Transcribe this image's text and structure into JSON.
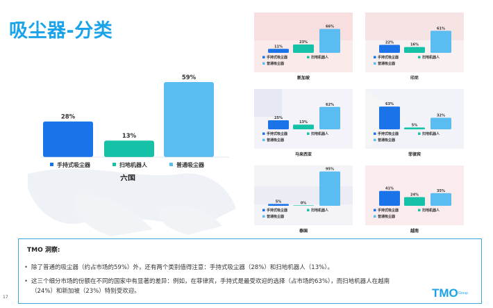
{
  "slide": {
    "title": "吸尘器-分类",
    "page_number": "17"
  },
  "colors": {
    "handheld": "#1a73e8",
    "robot": "#15c2a8",
    "regular": "#5bbcf2",
    "accent": "#1aa3e8"
  },
  "legend": {
    "handheld": "手持式吸尘器",
    "robot": "扫地机器人",
    "regular": "普通吸尘器"
  },
  "chart_data": [
    {
      "type": "bar",
      "title": "六国",
      "categories": [
        "手持式吸尘器",
        "扫地机器人",
        "普通吸尘器"
      ],
      "labels": [
        "28%",
        "13%",
        "59%"
      ],
      "values": [
        28,
        13,
        59
      ],
      "ylim": [
        0,
        100
      ]
    },
    {
      "type": "bar",
      "title": "新加坡",
      "categories": [
        "手持式吸尘器",
        "扫地机器人",
        "普通吸尘器"
      ],
      "labels": [
        "11%",
        "23%",
        "66%"
      ],
      "values": [
        11,
        23,
        66
      ],
      "ylim": [
        0,
        100
      ]
    },
    {
      "type": "bar",
      "title": "印尼",
      "categories": [
        "手持式吸尘器",
        "扫地机器人",
        "普通吸尘器"
      ],
      "labels": [
        "22%",
        "16%",
        "61%"
      ],
      "values": [
        22,
        16,
        61
      ],
      "ylim": [
        0,
        100
      ]
    },
    {
      "type": "bar",
      "title": "马来西亚",
      "categories": [
        "手持式吸尘器",
        "扫地机器人",
        "普通吸尘器"
      ],
      "labels": [
        "25%",
        "13%",
        "62%"
      ],
      "values": [
        25,
        13,
        62
      ],
      "ylim": [
        0,
        100
      ]
    },
    {
      "type": "bar",
      "title": "菲律宾",
      "categories": [
        "手持式吸尘器",
        "扫地机器人",
        "普通吸尘器"
      ],
      "labels": [
        "63%",
        "5%",
        "32%"
      ],
      "values": [
        63,
        5,
        32
      ],
      "ylim": [
        0,
        100
      ]
    },
    {
      "type": "bar",
      "title": "泰国",
      "categories": [
        "手持式吸尘器",
        "扫地机器人",
        "普通吸尘器"
      ],
      "labels": [
        "5%",
        "0%",
        "95%"
      ],
      "values": [
        5,
        0,
        95
      ],
      "ylim": [
        0,
        100
      ]
    },
    {
      "type": "bar",
      "title": "越南",
      "categories": [
        "手持式吸尘器",
        "扫地机器人",
        "普通吸尘器"
      ],
      "labels": [
        "41%",
        "24%",
        "35%"
      ],
      "values": [
        41,
        24,
        35
      ],
      "ylim": [
        0,
        100
      ]
    }
  ],
  "insights": {
    "title": "TMO 洞察:",
    "bullets": [
      "除了普通的吸尘器（约占市场的59%）外，还有两个类别值得注意：手持式吸尘器（28%）和扫地机器人（13%）。",
      "这三个细分市场的份额在不同的国家中有显著的差异：例如，在菲律宾，手持式是最受欢迎的选择（占市场的63%），而扫地机器人在越南",
      "（24%）和新加坡（23%）特别受欢迎。"
    ]
  },
  "logo": {
    "text": "TMO",
    "sub": "Group"
  }
}
